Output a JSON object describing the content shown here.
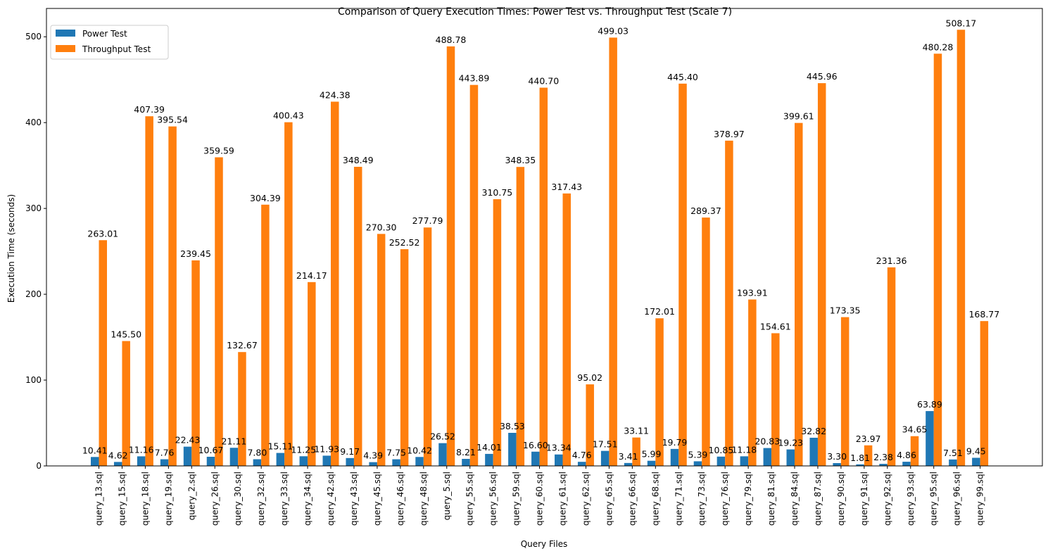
{
  "chart_data": {
    "type": "bar",
    "title": "Comparison of Query Execution Times: Power Test vs. Throughput Test (Scale 7)",
    "xlabel": "Query Files",
    "ylabel": "Execution Time (seconds)",
    "ylim": [
      0,
      533
    ],
    "yticks": [
      0,
      100,
      200,
      300,
      400,
      500
    ],
    "grid": false,
    "legend_position": "top-left",
    "categories": [
      "query_13.sql",
      "query_15.sql",
      "query_18.sql",
      "query_19.sql",
      "query_2.sql",
      "query_26.sql",
      "query_30.sql",
      "query_32.sql",
      "query_33.sql",
      "query_34.sql",
      "query_42.sql",
      "query_43.sql",
      "query_45.sql",
      "query_46.sql",
      "query_48.sql",
      "query_5.sql",
      "query_55.sql",
      "query_56.sql",
      "query_59.sql",
      "query_60.sql",
      "query_61.sql",
      "query_62.sql",
      "query_65.sql",
      "query_66.sql",
      "query_68.sql",
      "query_71.sql",
      "query_73.sql",
      "query_76.sql",
      "query_79.sql",
      "query_81.sql",
      "query_84.sql",
      "query_87.sql",
      "query_90.sql",
      "query_91.sql",
      "query_92.sql",
      "query_93.sql",
      "query_95.sql",
      "query_96.sql",
      "query_99.sql"
    ],
    "series": [
      {
        "name": "Power Test",
        "color": "#1f77b4",
        "values": [
          10.41,
          4.62,
          11.16,
          7.76,
          22.43,
          10.67,
          21.11,
          7.8,
          15.11,
          11.25,
          11.93,
          9.17,
          4.39,
          7.75,
          10.42,
          26.52,
          8.21,
          14.01,
          38.53,
          16.6,
          13.34,
          4.76,
          17.51,
          3.41,
          5.99,
          19.79,
          5.39,
          10.85,
          11.18,
          20.83,
          19.23,
          32.82,
          3.3,
          1.81,
          2.38,
          4.86,
          63.89,
          7.51,
          9.45
        ],
        "labels": [
          "10.41",
          "4.62",
          "11.16",
          "7.76",
          "22.43",
          "10.67",
          "21.11",
          "7.80",
          "15.11",
          "11.25",
          "11.93",
          "9.17",
          "4.39",
          "7.75",
          "10.42",
          "26.52",
          "8.21",
          "14.01",
          "38.53",
          "16.60",
          "13.34",
          "4.76",
          "17.51",
          "3.41",
          "5.99",
          "19.79",
          "5.39",
          "10.85",
          "11.18",
          "20.83",
          "19.23",
          "32.82",
          "3.30",
          "1.81",
          "2.38",
          "4.86",
          "63.89",
          "7.51",
          "9.45"
        ]
      },
      {
        "name": "Throughput Test",
        "color": "#ff7f0e",
        "values": [
          263.01,
          145.5,
          407.39,
          395.54,
          239.45,
          359.59,
          132.67,
          304.39,
          400.43,
          214.17,
          424.38,
          348.49,
          270.3,
          252.52,
          277.79,
          488.78,
          443.89,
          310.75,
          348.35,
          440.7,
          317.43,
          95.02,
          499.03,
          33.11,
          172.01,
          445.4,
          289.37,
          378.97,
          193.91,
          154.61,
          399.61,
          445.96,
          173.35,
          23.97,
          231.36,
          34.65,
          480.28,
          508.17,
          168.77
        ],
        "labels": [
          "263.01",
          "145.50",
          "407.39",
          "395.54",
          "239.45",
          "359.59",
          "132.67",
          "304.39",
          "400.43",
          "214.17",
          "424.38",
          "348.49",
          "270.30",
          "252.52",
          "277.79",
          "488.78",
          "443.89",
          "310.75",
          "348.35",
          "440.70",
          "317.43",
          "95.02",
          "499.03",
          "33.11",
          "172.01",
          "445.40",
          "289.37",
          "378.97",
          "193.91",
          "154.61",
          "399.61",
          "445.96",
          "173.35",
          "23.97",
          "231.36",
          "34.65",
          "480.28",
          "508.17",
          "168.77"
        ]
      }
    ]
  }
}
